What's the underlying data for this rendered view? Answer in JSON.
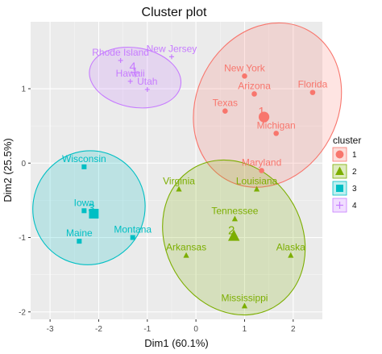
{
  "chart_data": {
    "type": "scatter",
    "title": "Cluster plot",
    "xlabel": "Dim1 (60.1%)",
    "ylabel": "Dim2 (25.5%)",
    "xlim": [
      -3.4,
      2.6
    ],
    "ylim": [
      -2.1,
      1.9
    ],
    "xticks": [
      -3,
      -2,
      -1,
      0,
      1,
      2
    ],
    "yticks": [
      -2,
      -1,
      0,
      1
    ],
    "grid": true,
    "legend": {
      "title": "cluster",
      "position": "right",
      "entries": [
        "1",
        "2",
        "3",
        "4"
      ]
    },
    "clusters": [
      {
        "name": "1",
        "color": "#F8766D",
        "marker": "circle",
        "center": [
          1.4,
          0.62
        ],
        "ellipse": {
          "cx": 1.47,
          "cy": 0.78,
          "rx": 1.75,
          "ry": 0.95,
          "rotation_deg": -62
        },
        "points": [
          {
            "label": "New York",
            "x": 1.0,
            "y": 1.17
          },
          {
            "label": "Arizona",
            "x": 1.2,
            "y": 0.93
          },
          {
            "label": "Texas",
            "x": 0.6,
            "y": 0.7
          },
          {
            "label": "Florida",
            "x": 2.4,
            "y": 0.95
          },
          {
            "label": "Michigan",
            "x": 1.65,
            "y": 0.4
          },
          {
            "label": "Maryland",
            "x": 1.35,
            "y": -0.1
          }
        ]
      },
      {
        "name": "2",
        "color": "#7CAE00",
        "marker": "triangle",
        "center": [
          0.78,
          -0.98
        ],
        "ellipse": {
          "cx": 0.78,
          "cy": -1.0,
          "rx": 1.4,
          "ry": 1.08,
          "rotation_deg": -30
        },
        "points": [
          {
            "label": "Virginia",
            "x": -0.35,
            "y": -0.35
          },
          {
            "label": "Louisiana",
            "x": 1.25,
            "y": -0.35
          },
          {
            "label": "Tennessee",
            "x": 0.8,
            "y": -0.75
          },
          {
            "label": "Arkansas",
            "x": -0.2,
            "y": -1.24
          },
          {
            "label": "Alaska",
            "x": 1.95,
            "y": -1.24
          },
          {
            "label": "Mississippi",
            "x": 1.0,
            "y": -1.92
          }
        ]
      },
      {
        "name": "3",
        "color": "#00BFC4",
        "marker": "square",
        "center": [
          -2.1,
          -0.68
        ],
        "ellipse": {
          "cx": -2.2,
          "cy": -0.6,
          "rx": 1.18,
          "ry": 0.75,
          "rotation_deg": -60
        },
        "points": [
          {
            "label": "Wisconsin",
            "x": -2.3,
            "y": -0.05
          },
          {
            "label": "Iowa",
            "x": -2.3,
            "y": -0.64
          },
          {
            "label": "Maine",
            "x": -2.4,
            "y": -1.05
          },
          {
            "label": "Montana",
            "x": -1.3,
            "y": -1.0
          }
        ]
      },
      {
        "name": "4",
        "color": "#C77CFF",
        "marker": "plus",
        "center": [
          -1.25,
          1.22
        ],
        "ellipse": {
          "cx": -1.25,
          "cy": 1.15,
          "rx": 0.95,
          "ry": 0.4,
          "rotation_deg": 10
        },
        "points": [
          {
            "label": "Rhode Island",
            "x": -1.55,
            "y": 1.38
          },
          {
            "label": "New Jersey",
            "x": -0.5,
            "y": 1.43
          },
          {
            "label": "Hawaii",
            "x": -1.35,
            "y": 1.1
          },
          {
            "label": "Utah",
            "x": -1.0,
            "y": 0.99
          }
        ]
      }
    ]
  }
}
